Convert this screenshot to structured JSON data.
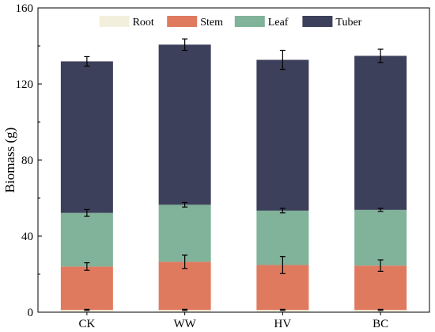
{
  "chart_data": {
    "type": "bar",
    "stacked": true,
    "categories": [
      "CK",
      "WW",
      "HV",
      "BC"
    ],
    "ylabel": "Biomass (g)",
    "xlabel": "",
    "ylim": [
      0,
      160
    ],
    "yticks": [
      0,
      40,
      80,
      120,
      160
    ],
    "grid": false,
    "legend_position": "top",
    "series": [
      {
        "name": "Root",
        "color": "#f2efdc",
        "values": [
          1.2,
          1.2,
          1.2,
          1.2
        ],
        "errors": [
          0.3,
          0.3,
          0.3,
          0.3
        ]
      },
      {
        "name": "Stem",
        "color": "#e07a5f",
        "values": [
          22.8,
          25.3,
          23.6,
          23.3
        ],
        "errors": [
          2.0,
          3.5,
          4.5,
          3.0
        ]
      },
      {
        "name": "Leaf",
        "color": "#81b29a",
        "values": [
          28.2,
          30.0,
          28.6,
          29.3
        ],
        "errors": [
          1.8,
          1.2,
          1.2,
          0.8
        ]
      },
      {
        "name": "Tuber",
        "color": "#3d405b",
        "values": [
          79.7,
          84.2,
          79.3,
          81.0
        ],
        "errors": [
          2.5,
          3.0,
          5.0,
          3.5
        ]
      }
    ]
  }
}
